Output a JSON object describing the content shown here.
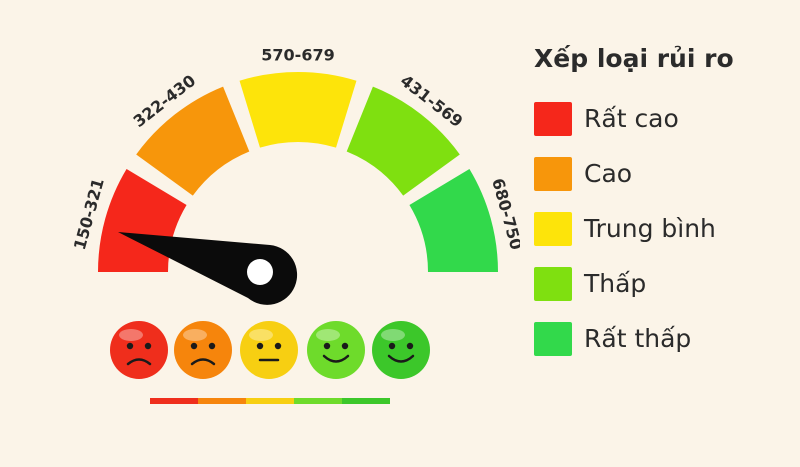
{
  "segments": [
    {
      "range": "150-321",
      "color": "#f5271b"
    },
    {
      "range": "322-430",
      "color": "#f7960b"
    },
    {
      "range": "570-679",
      "color": "#fde40a"
    },
    {
      "range": "431-569",
      "color": "#7fe010"
    },
    {
      "range": "680-750",
      "color": "#32d94b"
    }
  ],
  "faces": [
    {
      "icon": "sad-face-icon",
      "color": "#ef2e1c"
    },
    {
      "icon": "sad-face-icon",
      "color": "#f6850c"
    },
    {
      "icon": "neutral-face-icon",
      "color": "#f7cf12"
    },
    {
      "icon": "happy-face-icon",
      "color": "#6edb2b"
    },
    {
      "icon": "happy-face-icon",
      "color": "#3cc72a"
    }
  ],
  "legend": {
    "title": "Xếp loại rủi ro",
    "items": [
      {
        "label": "Rất cao",
        "color": "#f5271b"
      },
      {
        "label": "Cao",
        "color": "#f7960b"
      },
      {
        "label": "Trung bình",
        "color": "#fde40a"
      },
      {
        "label": "Thấp",
        "color": "#7fe010"
      },
      {
        "label": "Rất thấp",
        "color": "#32d94b"
      }
    ]
  }
}
